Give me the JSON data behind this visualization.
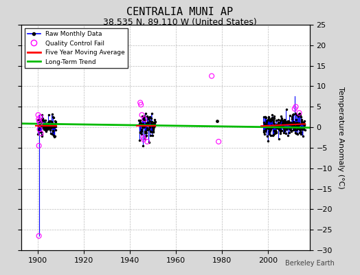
{
  "title": "CENTRALIA MUNI AP",
  "subtitle": "38.535 N, 89.110 W (United States)",
  "ylabel": "Temperature Anomaly (°C)",
  "watermark": "Berkeley Earth",
  "xlim": [
    1893,
    2018
  ],
  "ylim": [
    -30,
    25
  ],
  "yticks": [
    -30,
    -25,
    -20,
    -15,
    -10,
    -5,
    0,
    5,
    10,
    15,
    20,
    25
  ],
  "xticks": [
    1900,
    1920,
    1940,
    1960,
    1980,
    2000
  ],
  "bg_color": "#d8d8d8",
  "plot_bg_color": "#ffffff",
  "grid_color": "#bbbbbb",
  "raw_color": "#0000ff",
  "raw_dot_color": "#000000",
  "qc_color": "#ff00ff",
  "moving_avg_color": "#ff0000",
  "trend_color": "#00bb00",
  "title_fontsize": 11,
  "subtitle_fontsize": 9,
  "label_fontsize": 8,
  "tick_fontsize": 8
}
